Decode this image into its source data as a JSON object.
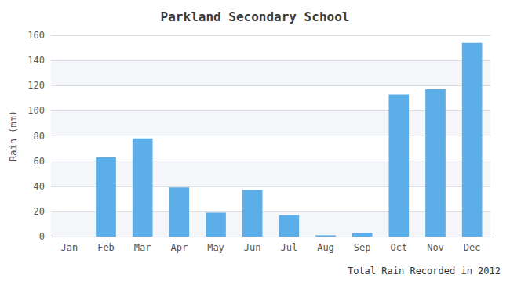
{
  "chart_data": {
    "type": "bar",
    "title": "Parkland Secondary School",
    "xlabel": "Total Rain Recorded in 2012",
    "ylabel": "Rain (mm)",
    "categories": [
      "Jan",
      "Feb",
      "Mar",
      "Apr",
      "May",
      "Jun",
      "Jul",
      "Aug",
      "Sep",
      "Oct",
      "Nov",
      "Dec"
    ],
    "values": [
      0,
      63,
      78,
      39,
      19,
      37,
      17,
      1,
      3,
      113,
      117,
      154
    ],
    "color": "#5BAEE8",
    "ylim": [
      0,
      160
    ],
    "yticks": [
      0,
      20,
      40,
      60,
      80,
      100,
      120,
      140,
      160
    ],
    "grid": true
  }
}
